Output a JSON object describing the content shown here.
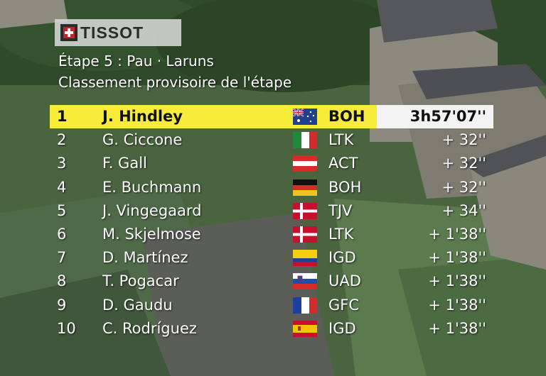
{
  "brand": {
    "name": "TISSOT"
  },
  "header": {
    "stage": "Étape 5 : Pau · Laruns",
    "subtitle": "Classement provisoire de l'étape"
  },
  "standings": [
    {
      "pos": "1",
      "name": "J. Hindley",
      "team": "BOH",
      "gap": "3h57'07''",
      "flag": "AUS"
    },
    {
      "pos": "2",
      "name": "G. Ciccone",
      "team": "LTK",
      "gap": "+ 32''",
      "flag": "ITA"
    },
    {
      "pos": "3",
      "name": "F. Gall",
      "team": "ACT",
      "gap": "+ 32''",
      "flag": "AUT"
    },
    {
      "pos": "4",
      "name": "E. Buchmann",
      "team": "BOH",
      "gap": "+ 32''",
      "flag": "GER"
    },
    {
      "pos": "5",
      "name": "J. Vingegaard",
      "team": "TJV",
      "gap": "+ 34''",
      "flag": "DEN"
    },
    {
      "pos": "6",
      "name": "M. Skjelmose",
      "team": "LTK",
      "gap": "+ 1'38''",
      "flag": "DEN"
    },
    {
      "pos": "7",
      "name": "D. Martínez",
      "team": "IGD",
      "gap": "+ 1'38''",
      "flag": "COL"
    },
    {
      "pos": "8",
      "name": "T. Pogacar",
      "team": "UAD",
      "gap": "+ 1'38''",
      "flag": "SLO"
    },
    {
      "pos": "9",
      "name": "D. Gaudu",
      "team": "GFC",
      "gap": "+ 1'38''",
      "flag": "FRA"
    },
    {
      "pos": "10",
      "name": "C. Rodríguez",
      "team": "IGD",
      "gap": "+ 1'38''",
      "flag": "ESP"
    }
  ],
  "colors": {
    "leader_bar": "#f7ec3a",
    "leader_time_bg": "#f3f3f3"
  }
}
